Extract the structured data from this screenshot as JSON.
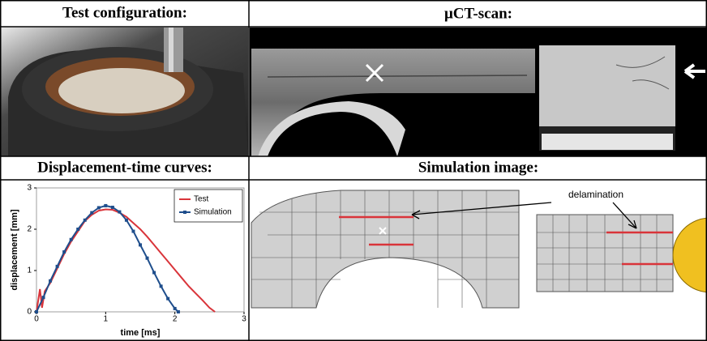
{
  "panels": [
    {
      "title": "Test configuration:"
    },
    {
      "title": "μCT-scan:"
    },
    {
      "title": "Displacement-time curves:"
    },
    {
      "title": "Simulation image:",
      "annotation": "delamination"
    }
  ],
  "chart_data": {
    "type": "line",
    "xlabel": "time [ms]",
    "ylabel": "displacement [mm]",
    "xlim": [
      0,
      3
    ],
    "ylim": [
      0,
      3
    ],
    "xticks": [
      0,
      1,
      2,
      3
    ],
    "yticks": [
      0,
      1,
      2,
      3
    ],
    "legend": "upper right",
    "series": [
      {
        "name": "Test",
        "color": "#d9343a",
        "markers": false,
        "x": [
          0,
          0.05,
          0.08,
          0.12,
          0.2,
          0.3,
          0.4,
          0.5,
          0.6,
          0.7,
          0.8,
          0.9,
          1.0,
          1.1,
          1.2,
          1.3,
          1.4,
          1.5,
          1.6,
          1.7,
          1.8,
          1.9,
          2.0,
          2.1,
          2.2,
          2.3,
          2.4,
          2.5,
          2.58
        ],
        "values": [
          0,
          0.55,
          0.1,
          0.5,
          0.7,
          1.05,
          1.4,
          1.7,
          1.95,
          2.2,
          2.35,
          2.45,
          2.48,
          2.47,
          2.4,
          2.3,
          2.15,
          2.0,
          1.82,
          1.62,
          1.42,
          1.22,
          1.02,
          0.82,
          0.62,
          0.45,
          0.28,
          0.1,
          0
        ]
      },
      {
        "name": "Simulation",
        "color": "#1f4e8c",
        "markers": true,
        "x": [
          0,
          0.1,
          0.2,
          0.3,
          0.4,
          0.5,
          0.6,
          0.7,
          0.8,
          0.9,
          1.0,
          1.1,
          1.2,
          1.3,
          1.4,
          1.5,
          1.6,
          1.7,
          1.8,
          1.9,
          2.0,
          2.05
        ],
        "values": [
          0,
          0.35,
          0.75,
          1.1,
          1.45,
          1.75,
          2.0,
          2.22,
          2.4,
          2.52,
          2.57,
          2.53,
          2.42,
          2.22,
          1.95,
          1.62,
          1.3,
          0.95,
          0.62,
          0.32,
          0.08,
          0
        ]
      }
    ]
  }
}
